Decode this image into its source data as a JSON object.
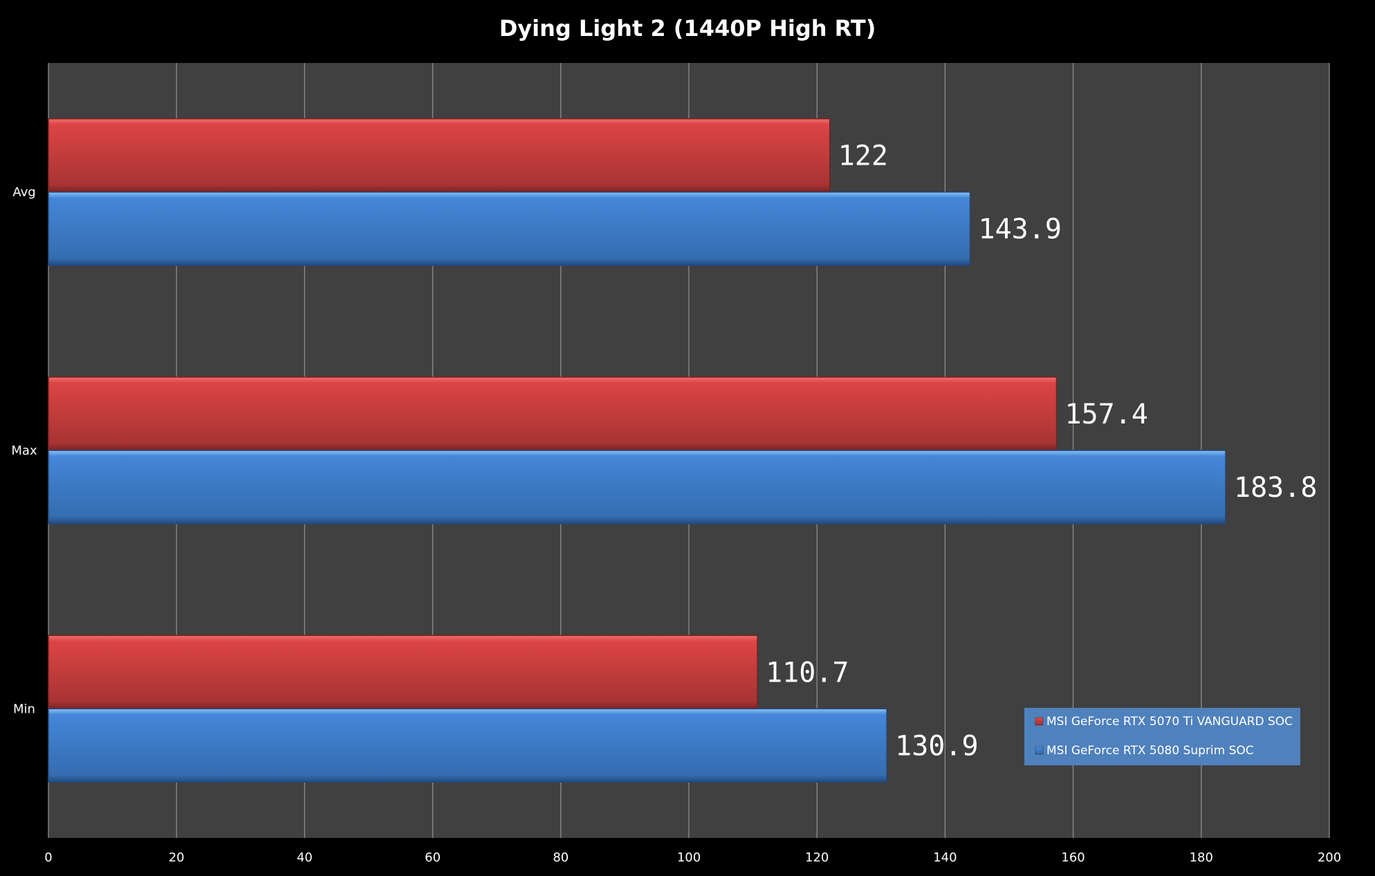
{
  "chart_data": {
    "type": "bar",
    "orientation": "horizontal",
    "title": "Dying Light 2 (1440P High RT)",
    "xlabel": "",
    "ylabel": "",
    "categories": [
      "Avg",
      "Max",
      "Min"
    ],
    "series": [
      {
        "name": "MSI GeForce RTX 5070 Ti VANGUARD SOC",
        "color": "#d94040",
        "values": [
          122,
          157.4,
          110.7
        ]
      },
      {
        "name": "MSI GeForce RTX 5080 Suprim SOC",
        "color": "#3d7dd0",
        "values": [
          143.9,
          183.8,
          130.9
        ]
      }
    ],
    "data_labels": [
      [
        "122",
        "157.4",
        "110.7"
      ],
      [
        "143.9",
        "183.8",
        "130.9"
      ]
    ],
    "xlim": [
      0,
      200
    ],
    "xticks": [
      "0",
      "20",
      "40",
      "60",
      "80",
      "100",
      "120",
      "140",
      "160",
      "180",
      "200"
    ],
    "grid": true,
    "legend": "bottom-right inside plot",
    "colors": {
      "background": "#000000",
      "plot": "#404040",
      "grid": "#8c8c8c",
      "legend_bg": "#4f81bd"
    }
  }
}
